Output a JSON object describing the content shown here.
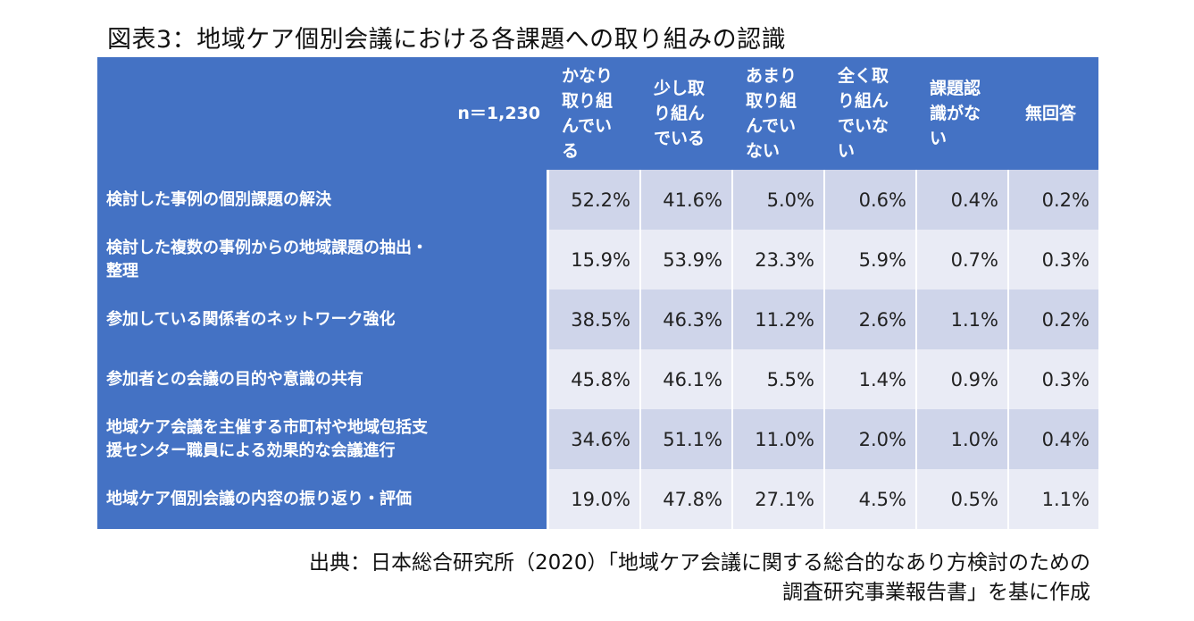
{
  "title": "図表3：地域ケア個別会議における各課題への取り組みの認識",
  "source_line1": "出典：日本総合研究所（2020）「地域ケア会議に関する総合的なあり方検討のための",
  "source_line2": "調査研究事業報告書」を基に作成",
  "chart_data": {
    "type": "table",
    "n_label": "n＝1,230",
    "columns": [
      [
        "かなり",
        "取り組",
        "んでい",
        "る"
      ],
      [
        "少し取",
        "り組ん",
        "でいる"
      ],
      [
        "あまり",
        "取り組",
        "んでい",
        "ない"
      ],
      [
        "全く取",
        "り組ん",
        "でいな",
        "い"
      ],
      [
        "課題認",
        "識がな",
        "い"
      ],
      [
        "無回答"
      ]
    ],
    "rows": [
      {
        "label": [
          "検討した事例の個別課題の解決"
        ],
        "values": [
          "52.2%",
          "41.6%",
          "5.0%",
          "0.6%",
          "0.4%",
          "0.2%"
        ]
      },
      {
        "label": [
          "検討した複数の事例からの地域課題の抽出・",
          "整理"
        ],
        "values": [
          "15.9%",
          "53.9%",
          "23.3%",
          "5.9%",
          "0.7%",
          "0.3%"
        ]
      },
      {
        "label": [
          "参加している関係者のネットワーク強化"
        ],
        "values": [
          "38.5%",
          "46.3%",
          "11.2%",
          "2.6%",
          "1.1%",
          "0.2%"
        ]
      },
      {
        "label": [
          "参加者との会議の目的や意識の共有"
        ],
        "values": [
          "45.8%",
          "46.1%",
          "5.5%",
          "1.4%",
          "0.9%",
          "0.3%"
        ]
      },
      {
        "label": [
          "地域ケア会議を主催する市町村や地域包括支",
          "援センター職員による効果的な会議進行"
        ],
        "values": [
          "34.6%",
          "51.1%",
          "11.0%",
          "2.0%",
          "1.0%",
          "0.4%"
        ]
      },
      {
        "label": [
          "地域ケア個別会議の内容の振り返り・評価"
        ],
        "values": [
          "19.0%",
          "47.8%",
          "27.1%",
          "4.5%",
          "0.5%",
          "1.1%"
        ]
      }
    ]
  }
}
